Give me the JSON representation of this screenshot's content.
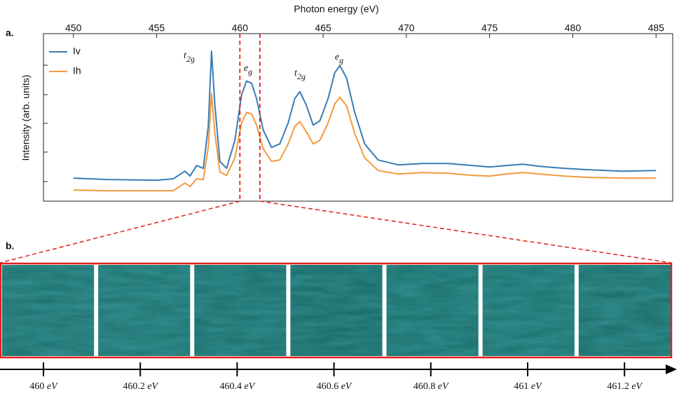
{
  "chart_data": {
    "type": "line",
    "xlabel": "Photon energy (eV)",
    "ylabel": "Intensity (arb. units)",
    "panel_label": "a.",
    "x": [
      450,
      452,
      455,
      456,
      456.7,
      457.0,
      457.4,
      457.8,
      458.1,
      458.3,
      458.5,
      458.8,
      459.2,
      459.7,
      460.1,
      460.4,
      460.7,
      461.0,
      461.4,
      461.9,
      462.4,
      462.9,
      463.3,
      463.6,
      464.0,
      464.4,
      464.8,
      465.3,
      465.7,
      466.0,
      466.4,
      466.9,
      467.5,
      468.3,
      469.5,
      471,
      472.5,
      474,
      475,
      476,
      477,
      478,
      479.5,
      481,
      483,
      485
    ],
    "series": [
      {
        "name": "Iv",
        "color": "#3a7cb5",
        "values": [
          33,
          31,
          30,
          32,
          43,
          36,
          51,
          47,
          107,
          215,
          137,
          57,
          47,
          87,
          152,
          172,
          169,
          147,
          102,
          77,
          82,
          112,
          147,
          157,
          137,
          109,
          115,
          147,
          184,
          194,
          177,
          127,
          82,
          59,
          52,
          54,
          54,
          51,
          49,
          51,
          53,
          50,
          47,
          45,
          43,
          44
        ]
      },
      {
        "name": "Ih",
        "color": "#f39a3c",
        "values": [
          16,
          15,
          15,
          15,
          26,
          21,
          32,
          31,
          77,
          154,
          97,
          42,
          37,
          62,
          112,
          127,
          125,
          109,
          75,
          57,
          59,
          82,
          107,
          114,
          99,
          82,
          87,
          112,
          139,
          149,
          137,
          97,
          62,
          44,
          39,
          41,
          40,
          37,
          36,
          39,
          41,
          39,
          36,
          34,
          33,
          33
        ]
      }
    ],
    "annotations": [
      "t2g",
      "eg",
      "t2g",
      "eg"
    ],
    "highlight_range": [
      460,
      461.2
    ],
    "highlight_color": "#e0201b",
    "xlim": [
      448.2,
      486
    ],
    "xticks": [
      450,
      455,
      460,
      465,
      470,
      475,
      480,
      485
    ],
    "ylim": [
      0,
      240
    ],
    "legend": "upper left"
  },
  "image_strip": {
    "panel_label": "b.",
    "labels": [
      "460 eV",
      "460.2 eV",
      "460.4 eV",
      "460.6 eV",
      "460.8 eV",
      "461 eV",
      "461.2 eV"
    ]
  }
}
